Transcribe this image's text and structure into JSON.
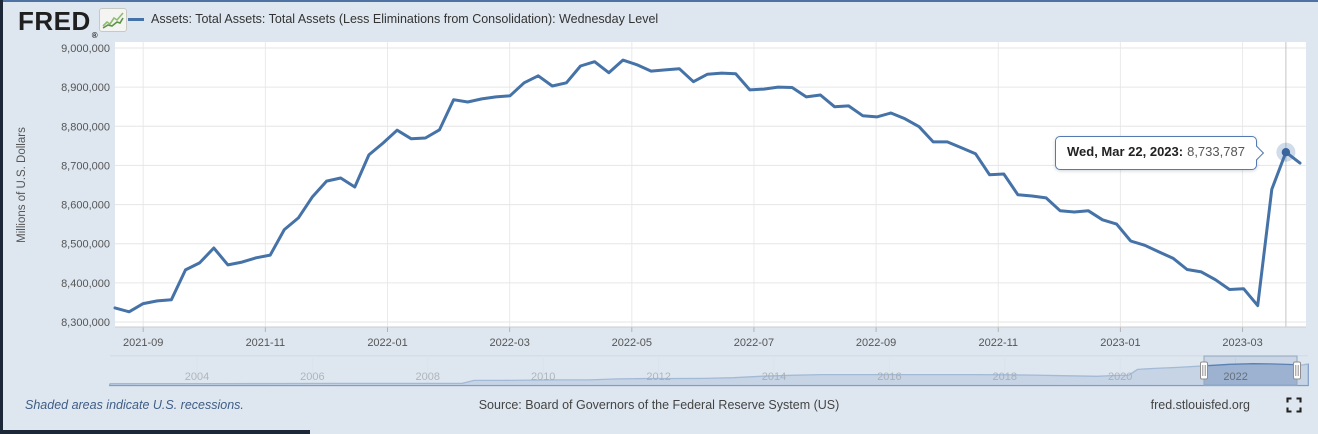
{
  "header": {
    "logo": "FRED",
    "logo_registered": "®",
    "legend": {
      "series_label": "Assets: Total Assets: Total Assets (Less Eliminations from Consolidation): Wednesday Level"
    }
  },
  "tooltip": {
    "date_label": "Wed, Mar 22, 2023:",
    "value_label": "8,733,787"
  },
  "footer": {
    "recessions_note": "Shaded areas indicate U.S. recessions.",
    "source": "Source: Board of Governors of the Federal Reserve System (US)",
    "site": "fred.stlouisfed.org"
  },
  "colors": {
    "accent_blue": "#4572a7",
    "page_bg": "#dee7f0",
    "plot_bg": "#ffffff",
    "grid_line": "#e6e6e6",
    "tick_text": "#555555",
    "navigator_fill": "#a9bdd8",
    "navigator_line": "#5b83b5",
    "dark_edge": "#1c2737",
    "tooltip_border": "#5579b0"
  },
  "chart_data": [
    {
      "type": "line",
      "name": "Assets: Total Assets: Total Assets (Less Eliminations from Consolidation): Wednesday Level",
      "ylabel": "Millions of U.S. Dollars",
      "frequency": "weekly-wednesday",
      "start_date": "2021-08-18",
      "end_date": "2023-03-29",
      "ylim": [
        8300000,
        9000000
      ],
      "grid": true,
      "y_tick_values": [
        8300000,
        8400000,
        8500000,
        8600000,
        8700000,
        8800000,
        8900000,
        9000000
      ],
      "x_tick_labels": [
        "2021-09",
        "2021-11",
        "2022-01",
        "2022-03",
        "2022-05",
        "2022-07",
        "2022-09",
        "2022-11",
        "2023-01",
        "2023-03"
      ],
      "values": [
        8336000,
        8326000,
        8347000,
        8354000,
        8357000,
        8433000,
        8451000,
        8489000,
        8446000,
        8453000,
        8464000,
        8471000,
        8536000,
        8566000,
        8620000,
        8660000,
        8668000,
        8645000,
        8727000,
        8757000,
        8790000,
        8768000,
        8770000,
        8791000,
        8868000,
        8862000,
        8870000,
        8875000,
        8878000,
        8911000,
        8929000,
        8903000,
        8911000,
        8954000,
        8965000,
        8937000,
        8969000,
        8957000,
        8941000,
        8944000,
        8947000,
        8914000,
        8933000,
        8936000,
        8934000,
        8893000,
        8895000,
        8900000,
        8899000,
        8875000,
        8880000,
        8850000,
        8852000,
        8827000,
        8824000,
        8834000,
        8819000,
        8799000,
        8760000,
        8760000,
        8745000,
        8730000,
        8676000,
        8678000,
        8625000,
        8622000,
        8617000,
        8584000,
        8581000,
        8584000,
        8561000,
        8550000,
        8507000,
        8496000,
        8479000,
        8463000,
        8434000,
        8428000,
        8408000,
        8383000,
        8385000,
        8342000,
        8639000,
        8733787,
        8706000
      ],
      "highlighted_point": {
        "date": "Wed, Mar 22, 2023",
        "value": 8733787
      }
    },
    {
      "type": "area",
      "role": "navigator-range-preview",
      "x_tick_labels": [
        "2004",
        "2006",
        "2008",
        "2010",
        "2012",
        "2014",
        "2016",
        "2018",
        "2020",
        "2022"
      ],
      "selected_range": [
        "2021-08",
        "2023-03"
      ],
      "points": [
        [
          2002.5,
          730000
        ],
        [
          2003.5,
          770000
        ],
        [
          2004.5,
          790000
        ],
        [
          2005.5,
          820000
        ],
        [
          2006.5,
          850000
        ],
        [
          2007.5,
          870000
        ],
        [
          2008.6,
          910000
        ],
        [
          2008.8,
          2100000
        ],
        [
          2009.3,
          2100000
        ],
        [
          2009.8,
          2200000
        ],
        [
          2010.3,
          2300000
        ],
        [
          2010.8,
          2300000
        ],
        [
          2011.3,
          2700000
        ],
        [
          2011.8,
          2850000
        ],
        [
          2012.3,
          2880000
        ],
        [
          2012.8,
          2900000
        ],
        [
          2013.3,
          3200000
        ],
        [
          2013.8,
          3800000
        ],
        [
          2014.3,
          4200000
        ],
        [
          2014.8,
          4480000
        ],
        [
          2015.5,
          4480000
        ],
        [
          2016.5,
          4450000
        ],
        [
          2017.5,
          4450000
        ],
        [
          2018.0,
          4400000
        ],
        [
          2018.5,
          4250000
        ],
        [
          2019.0,
          4000000
        ],
        [
          2019.6,
          3780000
        ],
        [
          2019.9,
          4100000
        ],
        [
          2020.15,
          4250000
        ],
        [
          2020.3,
          6600000
        ],
        [
          2020.6,
          7000000
        ],
        [
          2021.0,
          7400000
        ],
        [
          2021.5,
          8100000
        ],
        [
          2021.9,
          8700000
        ],
        [
          2022.3,
          8950000
        ],
        [
          2022.6,
          8850000
        ],
        [
          2022.9,
          8650000
        ],
        [
          2023.1,
          8450000
        ],
        [
          2023.17,
          8400000
        ],
        [
          2023.22,
          8700000
        ],
        [
          2023.25,
          8710000
        ]
      ]
    }
  ]
}
